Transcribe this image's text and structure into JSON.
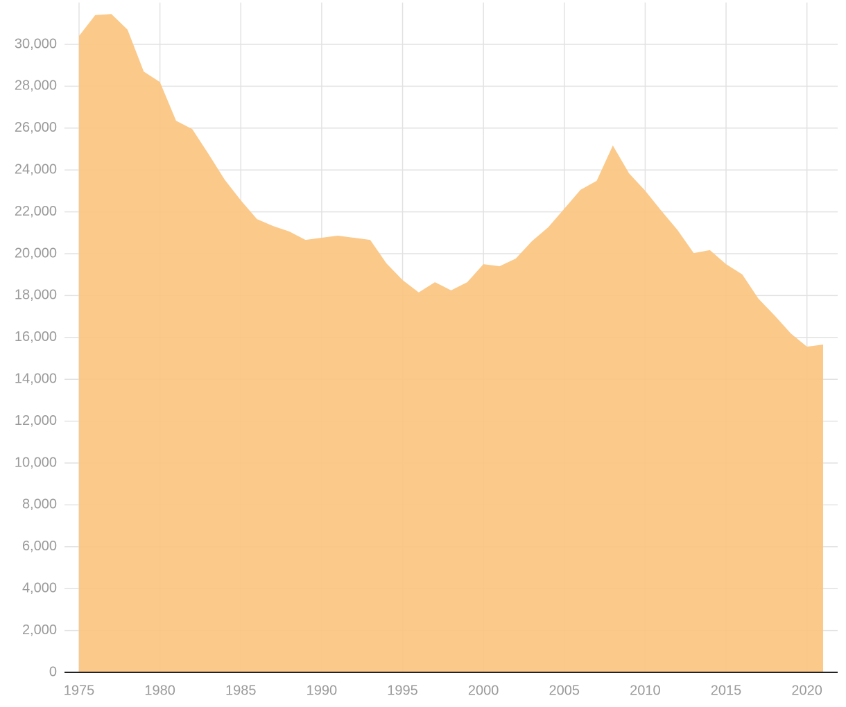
{
  "chart_data": {
    "type": "area",
    "x": [
      1975,
      1976,
      1977,
      1978,
      1979,
      1980,
      1981,
      1982,
      1983,
      1984,
      1985,
      1986,
      1987,
      1988,
      1989,
      1990,
      1991,
      1992,
      1993,
      1994,
      1995,
      1996,
      1997,
      1998,
      1999,
      2000,
      2001,
      2002,
      2003,
      2004,
      2005,
      2006,
      2007,
      2008,
      2009,
      2010,
      2011,
      2012,
      2013,
      2014,
      2015,
      2016,
      2017,
      2018,
      2019,
      2020,
      2021
    ],
    "values": [
      30400,
      31400,
      31450,
      30700,
      28700,
      28200,
      26350,
      25950,
      24770,
      23540,
      22550,
      21650,
      21320,
      21060,
      20660,
      20760,
      20860,
      20760,
      20660,
      19540,
      18740,
      18150,
      18640,
      18250,
      18640,
      19500,
      19400,
      19770,
      20600,
      21260,
      22150,
      23050,
      23480,
      25170,
      23840,
      23010,
      22050,
      21130,
      20030,
      20170,
      19500,
      19010,
      17850,
      17050,
      16190,
      15560,
      15660
    ],
    "color": "#fbc47f",
    "xlim": [
      1974.1,
      2021.9
    ],
    "xticks": [
      1975,
      1980,
      1985,
      1990,
      1995,
      2000,
      2005,
      2010,
      2015,
      2020
    ],
    "ylim": [
      0,
      32000
    ],
    "yticks": [
      0,
      {
        "value": 2000,
        "label": "2,000"
      },
      {
        "value": 4000,
        "label": "4,000"
      },
      {
        "value": 6000,
        "label": "6,000"
      },
      {
        "value": 8000,
        "label": "8,000"
      },
      {
        "value": 10000,
        "label": "10,000"
      },
      {
        "value": 12000,
        "label": "12,000"
      },
      {
        "value": 14000,
        "label": "14,000"
      },
      {
        "value": 16000,
        "label": "16,000"
      },
      {
        "value": 18000,
        "label": "18,000"
      },
      {
        "value": 20000,
        "label": "20,000"
      },
      {
        "value": 22000,
        "label": "22,000"
      },
      {
        "value": 24000,
        "label": "24,000"
      },
      {
        "value": 26000,
        "label": "26,000"
      },
      {
        "value": 28000,
        "label": "28,000"
      },
      {
        "value": 30000,
        "label": "30,000"
      }
    ],
    "grid": true
  }
}
